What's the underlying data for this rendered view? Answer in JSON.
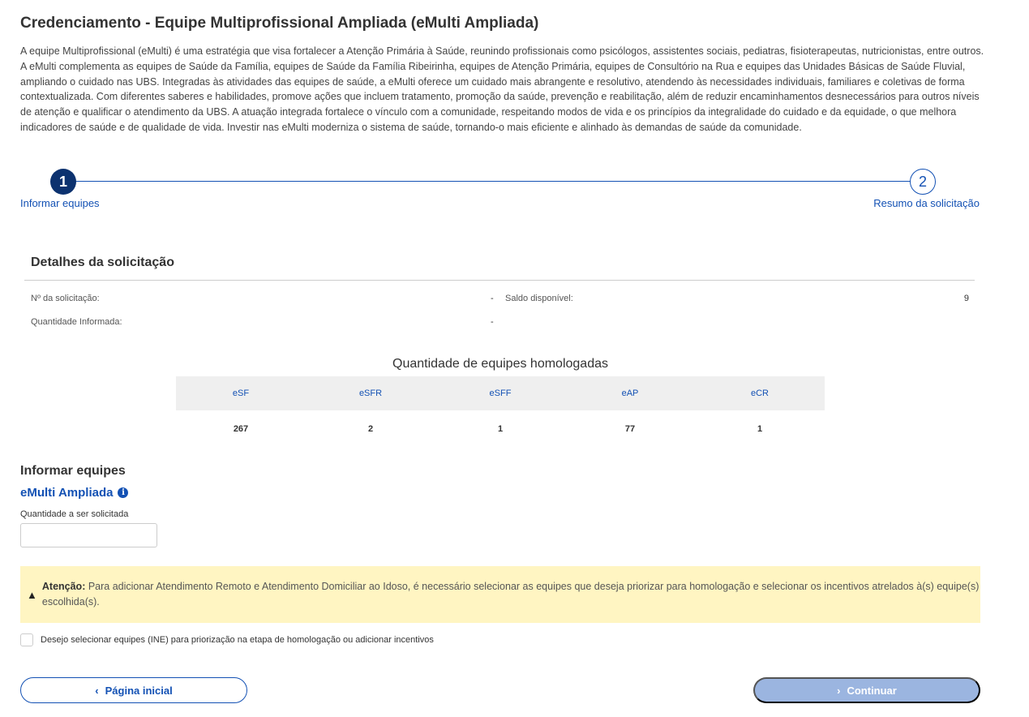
{
  "page": {
    "title": "Credenciamento - Equipe Multiprofissional Ampliada (eMulti Ampliada)",
    "intro": "A equipe Multiprofissional (eMulti) é uma estratégia que visa fortalecer a Atenção Primária à Saúde, reunindo profissionais como psicólogos, assistentes sociais, pediatras, fisioterapeutas, nutricionistas, entre outros. A eMulti complementa as equipes de Saúde da Família, equipes de Saúde da Família Ribeirinha, equipes de Atenção Primária, equipes de Consultório na Rua e equipes das Unidades Básicas de Saúde Fluvial, ampliando o cuidado nas UBS. Integradas às atividades das equipes de saúde, a eMulti oferece um cuidado mais abrangente e resolutivo, atendendo às necessidades individuais, familiares e coletivas de forma contextualizada. Com diferentes saberes e habilidades, promove ações que incluem tratamento, promoção da saúde, prevenção e reabilitação, além de reduzir encaminhamentos desnecessários para outros níveis de atenção e qualificar o atendimento da UBS. A atuação integrada fortalece o vínculo com a comunidade, respeitando modos de vida e os princípios da integralidade do cuidado e da equidade, o que melhora indicadores de saúde e de qualidade de vida. Investir nas eMulti moderniza o sistema de saúde, tornando-o mais eficiente e alinhado às demandas de saúde da comunidade."
  },
  "stepper": {
    "steps": [
      {
        "number": "1",
        "label": "Informar equipes",
        "active": true
      },
      {
        "number": "2",
        "label": "Resumo da solicitação",
        "active": false
      }
    ]
  },
  "details": {
    "title": "Detalhes da solicitação",
    "request_number_label": "Nº da solicitação:",
    "request_number_value": "-",
    "balance_label": "Saldo disponível:",
    "balance_value": "9",
    "quantity_label": "Quantidade Informada:",
    "quantity_value": "-"
  },
  "homologated": {
    "title": "Quantidade de equipes homologadas",
    "headers": [
      "eSF",
      "eSFR",
      "eSFF",
      "eAP",
      "eCR"
    ],
    "values": [
      "267",
      "2",
      "1",
      "77",
      "1"
    ]
  },
  "form": {
    "section_title": "Informar equipes",
    "subtitle": "eMulti Ampliada",
    "info_icon": "info-icon",
    "quantity_label": "Quantidade a ser solicitada",
    "quantity_value": ""
  },
  "alert": {
    "icon": "warning-icon",
    "bold": "Atenção:",
    "text": " Para adicionar Atendimento Remoto e Atendimento Domiciliar ao Idoso, é necessário selecionar as equipes que deseja priorizar para homologação e selecionar os incentivos atrelados à(s) equipe(s) escolhida(s)."
  },
  "checkbox": {
    "label": "Desejo selecionar equipes (INE) para priorização na etapa de homologação ou adicionar incentivos",
    "checked": false
  },
  "buttons": {
    "back": "Página inicial",
    "continue": "Continuar"
  },
  "colors": {
    "primary": "#1351b4",
    "step_active": "#0c326f",
    "alert_bg": "#fff5c2",
    "disabled_button": "#9bb5e0"
  }
}
